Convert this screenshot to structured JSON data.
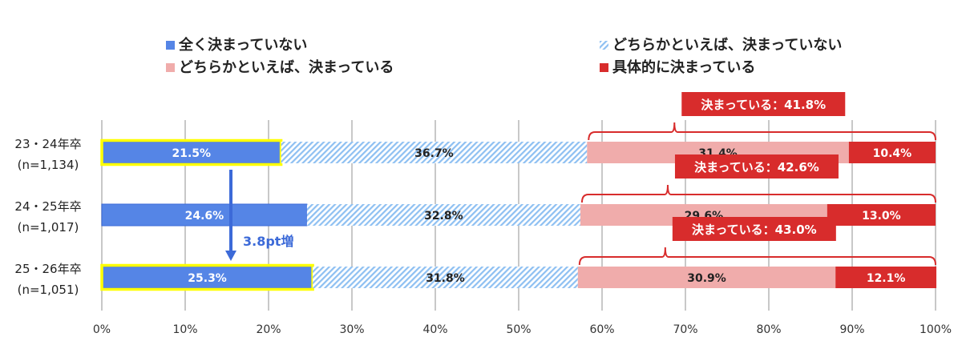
{
  "chart_data": {
    "type": "bar",
    "orientation": "horizontal-stacked-100",
    "categories": [
      {
        "line1": "23・24年卒",
        "line2": "(n=1,134)",
        "highlight": true
      },
      {
        "line1": "24・25年卒",
        "line2": "(n=1,017)",
        "highlight": false
      },
      {
        "line1": "25・26年卒",
        "line2": "(n=1,051)",
        "highlight": true
      }
    ],
    "series": [
      {
        "name": "全く決まっていない",
        "values": [
          21.5,
          24.6,
          25.3
        ],
        "labels": [
          "21.5%",
          "24.6%",
          "25.3%"
        ],
        "color": "#5585e6",
        "pattern": "solid",
        "label_color": "#ffffff"
      },
      {
        "name": "どちらかといえば、決まっていない",
        "values": [
          36.7,
          32.8,
          31.8
        ],
        "labels": [
          "36.7%",
          "32.8%",
          "31.8%"
        ],
        "color": "#8ec0f2",
        "pattern": "hatch",
        "label_color": "#222222"
      },
      {
        "name": "どちらかといえば、決まっている",
        "values": [
          31.4,
          29.6,
          30.9
        ],
        "labels": [
          "31.4%",
          "29.6%",
          "30.9%"
        ],
        "color": "#f0acab",
        "pattern": "solid",
        "label_color": "#222222"
      },
      {
        "name": "具体的に決まっている",
        "values": [
          10.4,
          13.0,
          12.1
        ],
        "labels": [
          "10.4%",
          "13.0%",
          "12.1%"
        ],
        "color": "#d82c2c",
        "pattern": "solid",
        "label_color": "#ffffff"
      }
    ],
    "callouts": [
      "決まっている：41.8%",
      "決まっている：42.6%",
      "決まっている：43.0%"
    ],
    "annotation": "3.8pt増",
    "xlim": [
      0,
      100
    ],
    "xticks": [
      "0%",
      "10%",
      "20%",
      "30%",
      "40%",
      "50%",
      "60%",
      "70%",
      "80%",
      "90%",
      "100%"
    ],
    "grid": true,
    "legend_position": "top",
    "highlight_color": "#ffff00",
    "accent_color": "#d82c2c"
  }
}
